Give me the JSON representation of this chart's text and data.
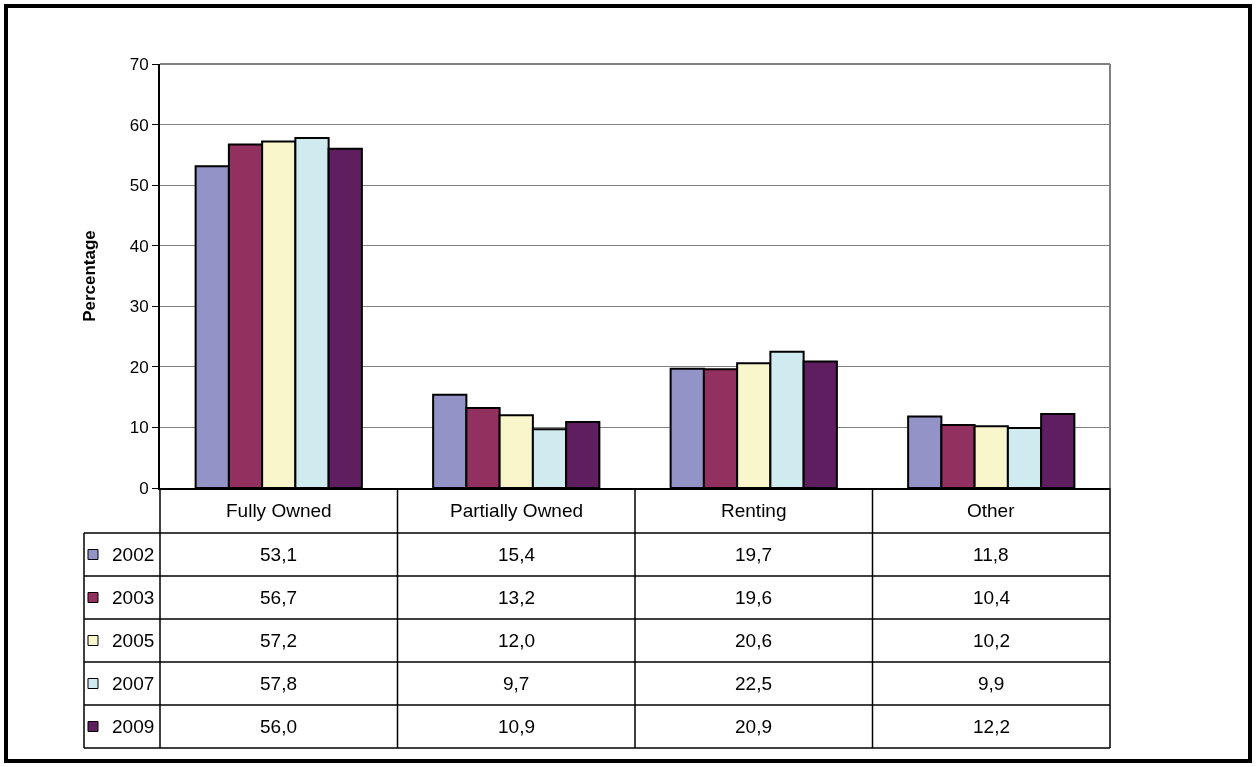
{
  "chart_data": {
    "type": "bar",
    "ylabel": "Percentage",
    "categories": [
      "Fully Owned",
      "Partially Owned",
      "Renting",
      "Other"
    ],
    "series": [
      {
        "name": "2002",
        "color": "#9393c8",
        "values": [
          53.1,
          15.4,
          19.7,
          11.8
        ],
        "value_labels": [
          "53,1",
          "15,4",
          "19,7",
          "11,8"
        ]
      },
      {
        "name": "2003",
        "color": "#923060",
        "values": [
          56.7,
          13.2,
          19.6,
          10.4
        ],
        "value_labels": [
          "56,7",
          "13,2",
          "19,6",
          "10,4"
        ]
      },
      {
        "name": "2005",
        "color": "#faf6cc",
        "values": [
          57.2,
          12.0,
          20.6,
          10.2
        ],
        "value_labels": [
          "57,2",
          "12,0",
          "20,6",
          "10,2"
        ]
      },
      {
        "name": "2007",
        "color": "#cfebef",
        "values": [
          57.8,
          9.7,
          22.5,
          9.9
        ],
        "value_labels": [
          "57,8",
          "9,7",
          "22,5",
          "9,9"
        ]
      },
      {
        "name": "2009",
        "color": "#5f1e5f",
        "values": [
          56.0,
          10.9,
          20.9,
          12.2
        ],
        "value_labels": [
          "56,0",
          "10,9",
          "20,9",
          "12,2"
        ]
      }
    ],
    "legend": "bottom left",
    "ylim": [
      0,
      70
    ],
    "yticks": [
      0,
      10,
      20,
      30,
      40,
      50,
      60,
      70
    ],
    "grid": "y"
  }
}
